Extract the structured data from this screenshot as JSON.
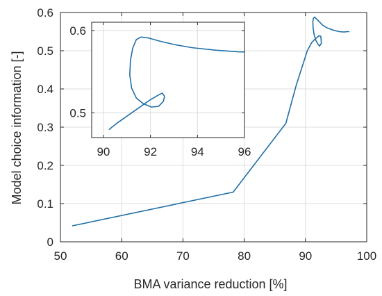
{
  "chart_data": [
    {
      "type": "line",
      "xlabel": "BMA variance reduction [%]",
      "ylabel": "Model choice information [-]",
      "xlim": [
        50,
        100
      ],
      "ylim": [
        0,
        0.6
      ],
      "xticks": [
        50,
        60,
        70,
        80,
        90,
        100
      ],
      "xtick_labels": [
        "50",
        "60",
        "70",
        "80",
        "90",
        "100"
      ],
      "yticks": [
        0,
        0.1,
        0.2,
        0.3,
        0.4,
        0.5,
        0.6
      ],
      "ytick_labels": [
        "0",
        "0.1",
        "0.2",
        "0.3",
        "0.4",
        "0.5",
        "0.6"
      ],
      "grid": true,
      "color": "#1f6fa6",
      "series": [
        {
          "x": [
            52.0,
            78.2,
            86.8,
            88.5,
            90.3,
            91.0,
            91.6,
            92.2,
            92.5,
            92.6,
            92.3,
            92.0,
            91.7,
            91.4,
            91.25,
            91.2,
            91.3,
            91.5,
            92.0,
            92.8,
            93.5,
            94.5,
            95.5,
            96.3,
            96.8,
            97.1
          ],
          "y": [
            0.042,
            0.13,
            0.31,
            0.41,
            0.5,
            0.521,
            0.531,
            0.539,
            0.538,
            0.52,
            0.512,
            0.518,
            0.527,
            0.543,
            0.56,
            0.575,
            0.585,
            0.588,
            0.58,
            0.567,
            0.56,
            0.554,
            0.55,
            0.549,
            0.55,
            0.55
          ]
        }
      ]
    },
    {
      "type": "line",
      "note_inset": true,
      "xlim": [
        89.5,
        96
      ],
      "ylim": [
        0.47,
        0.61
      ],
      "xticks": [
        90,
        92,
        94,
        96
      ],
      "xtick_labels": [
        "90",
        "92",
        "94",
        "96"
      ],
      "yticks": [
        0.5,
        0.6
      ],
      "ytick_labels": [
        "0.5",
        "0.6"
      ],
      "grid": true,
      "color": "#1f6fa6",
      "series": [
        {
          "x": [
            90.25,
            90.6,
            91.0,
            91.5,
            92.0,
            92.3,
            92.5,
            92.6,
            92.55,
            92.35,
            92.05,
            91.7,
            91.4,
            91.2,
            91.12,
            91.15,
            91.25,
            91.4,
            91.6,
            91.9,
            92.4,
            93.0,
            93.8,
            94.8,
            95.8,
            96.0
          ],
          "y": [
            0.48,
            0.488,
            0.496,
            0.506,
            0.516,
            0.521,
            0.524,
            0.52,
            0.514,
            0.508,
            0.507,
            0.511,
            0.518,
            0.53,
            0.546,
            0.564,
            0.579,
            0.589,
            0.592,
            0.591,
            0.587,
            0.583,
            0.579,
            0.576,
            0.574,
            0.574
          ]
        }
      ]
    }
  ]
}
